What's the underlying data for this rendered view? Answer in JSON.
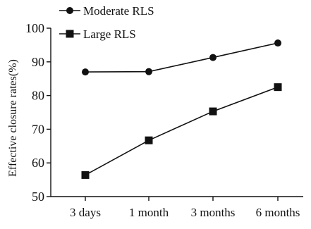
{
  "chart_data": {
    "type": "line",
    "categories": [
      "3 days",
      "1 month",
      "3 months",
      "6 months"
    ],
    "series": [
      {
        "name": "Moderate RLS",
        "marker": "circle",
        "values": [
          87.0,
          87.1,
          91.3,
          95.6
        ]
      },
      {
        "name": "Large RLS",
        "marker": "square",
        "values": [
          56.4,
          66.7,
          75.3,
          82.5
        ]
      }
    ],
    "title": "",
    "xlabel": "",
    "ylabel": "Effective closure rates(%)",
    "ylim": [
      50,
      100
    ],
    "yticks": [
      50,
      60,
      70,
      80,
      90,
      100
    ],
    "grid": false,
    "legend": "top-left",
    "line_color": "#111111"
  }
}
